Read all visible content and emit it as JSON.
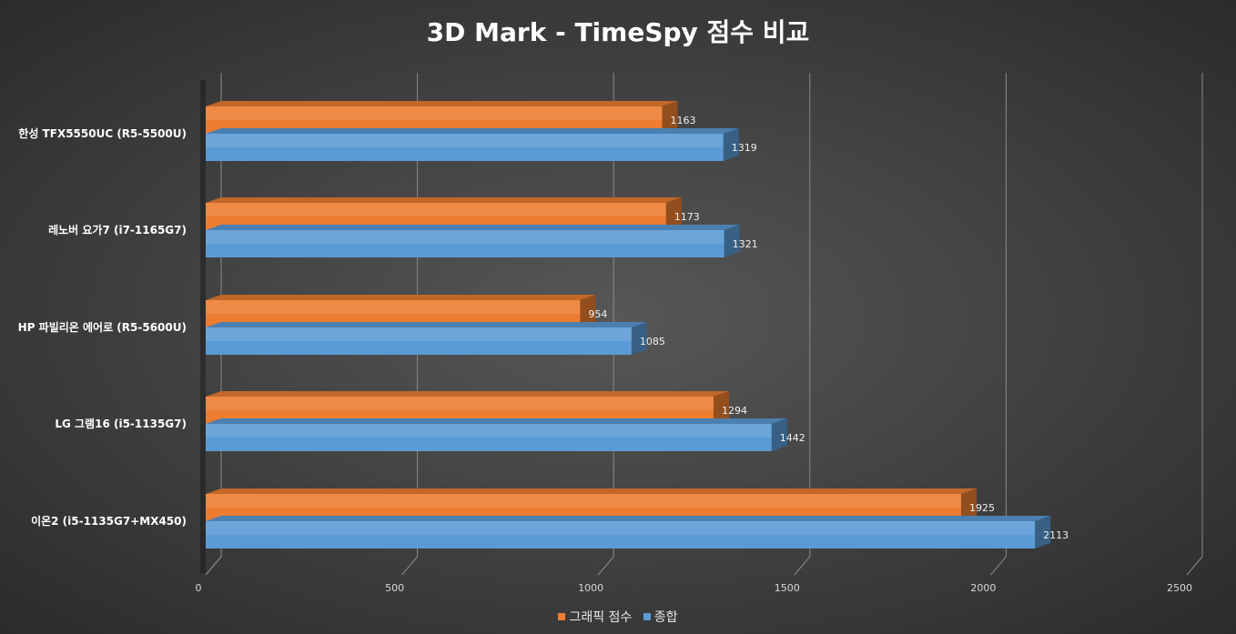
{
  "chart_data": {
    "type": "bar",
    "orientation": "horizontal",
    "style": "3d",
    "title": "3D Mark - TimeSpy 점수 비교",
    "categories": [
      "한성 TFX5550UC (R5-5500U)",
      "레노버 요가7 (i7-1165G7)",
      "HP 파빌리온 에어로 (R5-5600U)",
      "LG 그램16 (i5-1135G7)",
      "이온2 (i5-1135G7+MX450)"
    ],
    "series": [
      {
        "name": "그래픽 점수",
        "values": [
          1163,
          1173,
          954,
          1294,
          1925
        ],
        "color": "#ED7D31"
      },
      {
        "name": "종합",
        "values": [
          1319,
          1321,
          1085,
          1442,
          2113
        ],
        "color": "#5B9BD5"
      }
    ],
    "xlim": [
      0,
      2500
    ],
    "x_ticks": [
      "0",
      "500",
      "1000",
      "1500",
      "2000",
      "2500"
    ],
    "grid": true,
    "legend_position": "bottom"
  }
}
